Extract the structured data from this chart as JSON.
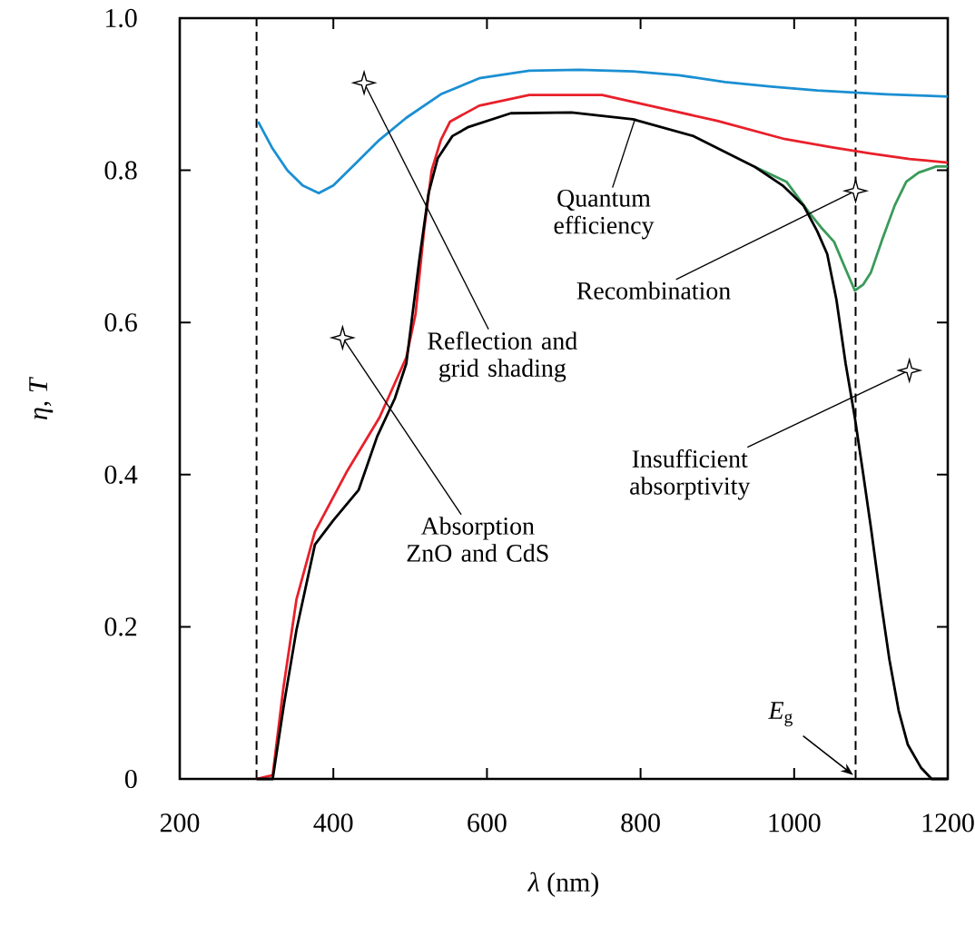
{
  "chart_data": {
    "type": "line",
    "xlabel": "*λ* (nm)",
    "ylabel": "*η*, *T*",
    "xlim": [
      200,
      1200
    ],
    "ylim": [
      0,
      1
    ],
    "xticks": [
      200,
      400,
      600,
      800,
      1000,
      1200
    ],
    "yticks": [
      0,
      0.2,
      0.4,
      0.6,
      0.8,
      {
        "value": 1,
        "label": "1.0"
      }
    ],
    "series": [
      {
        "color": "#1b8fd2",
        "x": [
          302,
          320,
          340,
          360,
          381,
          400,
          430,
          460,
          495,
          540,
          590,
          655,
          720,
          790,
          850,
          910,
          970,
          1030,
          1067,
          1120,
          1170,
          1200
        ],
        "values": [
          0.864,
          0.83,
          0.8,
          0.78,
          0.77,
          0.78,
          0.81,
          0.84,
          0.869,
          0.9,
          0.921,
          0.931,
          0.932,
          0.93,
          0.925,
          0.916,
          0.91,
          0.905,
          0.903,
          0.9,
          0.898,
          0.897
        ]
      },
      {
        "color": "#e8202a",
        "x": [
          300,
          321,
          335,
          352,
          376,
          417,
          460,
          495,
          507,
          518,
          528,
          540,
          552,
          590,
          655,
          750,
          829,
          900,
          988,
          1050,
          1100,
          1150,
          1200
        ],
        "values": [
          0,
          0.005,
          0.12,
          0.236,
          0.325,
          0.403,
          0.475,
          0.554,
          0.611,
          0.72,
          0.8,
          0.84,
          0.864,
          0.885,
          0.899,
          0.899,
          0.881,
          0.865,
          0.841,
          0.83,
          0.822,
          0.815,
          0.81
        ]
      },
      {
        "color": "#3a9a5a",
        "x": [
          948,
          990,
          1019,
          1035,
          1052,
          1067,
          1079,
          1090,
          1100,
          1115,
          1131,
          1146,
          1162,
          1185,
          1200
        ],
        "values": [
          0.805,
          0.785,
          0.745,
          0.725,
          0.706,
          0.67,
          0.642,
          0.65,
          0.666,
          0.71,
          0.754,
          0.785,
          0.797,
          0.805,
          0.805
        ]
      },
      {
        "color": "#000000",
        "x": [
          300,
          321,
          336,
          352,
          376,
          400,
          433,
          457,
          480,
          495,
          512,
          524,
          536,
          555,
          576,
          631,
          710,
          790,
          869,
          948,
          985,
          1012,
          1030,
          1043,
          1055,
          1067,
          1079,
          1090,
          1100,
          1112,
          1124,
          1136,
          1148,
          1165,
          1179,
          1200
        ],
        "values": [
          0,
          0,
          0.1,
          0.196,
          0.308,
          0.34,
          0.38,
          0.45,
          0.5,
          0.546,
          0.683,
          0.77,
          0.816,
          0.845,
          0.857,
          0.875,
          0.876,
          0.867,
          0.845,
          0.805,
          0.78,
          0.754,
          0.72,
          0.69,
          0.63,
          0.546,
          0.475,
          0.4,
          0.33,
          0.24,
          0.157,
          0.09,
          0.045,
          0.015,
          0,
          0
        ]
      }
    ],
    "annotations": [
      "Reflection and grid shading",
      "Quantum efficiency",
      {
        "text": "Recombination",
        "x": 1080,
        "y": 0.773
      },
      "Insufficient absorptivity",
      "Absorption ZnO and CdS"
    ],
    "ref_lines": [
      {
        "axis": "x",
        "value": 300,
        "line_style": "dashed"
      },
      {
        "axis": "x",
        "value": 1080,
        "line_style": "dashed",
        "label": "*E*$_{g}$"
      }
    ]
  }
}
